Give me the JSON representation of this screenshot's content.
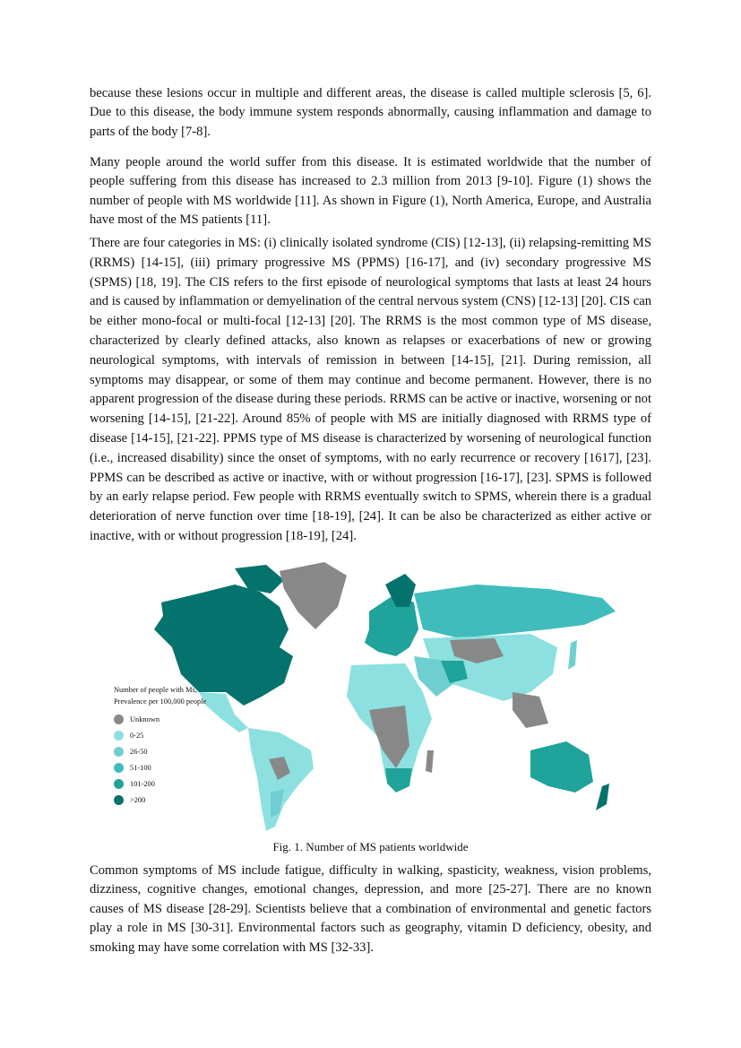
{
  "paragraphs": [
    "because these lesions occur in multiple and different areas, the disease is called multiple sclerosis [5, 6]. Due to this disease, the body immune system responds abnormally, causing inflammation and damage to parts of the body [7-8].",
    "Many people around the world suffer from this disease. It is estimated worldwide that the number of people suffering from this disease has increased to 2.3 million from 2013 [9-10]. Figure (1) shows the number of people with MS worldwide [11]. As shown in Figure (1), North America, Europe, and Australia have most of the MS patients [11].",
    "There are four categories in MS: (i) clinically isolated syndrome (CIS) [12-13], (ii) relapsing-remitting MS (RRMS) [14-15], (iii) primary progressive MS (PPMS) [16-17], and (iv) secondary progressive MS (SPMS) [18, 19]. The CIS refers to the first episode of neurological symptoms that lasts at least 24 hours and is caused by inflammation or demyelination of the central nervous system (CNS) [12-13] [20]. CIS can be either mono-focal or multi-focal [12-13] [20]. The RRMS is the most common type of MS disease, characterized by clearly defined attacks, also known as relapses or exacerbations of new or growing neurological symptoms, with intervals of remission in between [14-15], [21]. During remission, all symptoms may disappear, or some of them may continue and become permanent. However, there is no apparent progression of the disease during these periods. RRMS can be active or inactive, worsening or not worsening [14-15], [21-22]. Around 85% of people with MS are initially diagnosed with RRMS type of disease [14-15], [21-22]. PPMS type of MS disease is characterized by worsening of neurological function (i.e., increased disability) since the onset of symptoms, with no early recurrence or recovery [1617], [23]. PPMS can be described as active or inactive, with or without progression [16-17], [23]. SPMS is followed by an early relapse period. Few people with RRMS eventually switch to SPMS, wherein there is a gradual deterioration of nerve function over time [18-19], [24]. It can be also be characterized as either active or inactive, with or without progression [18-19], [24].",
    "Common symptoms of MS include fatigue, difficulty in walking, spasticity, weakness, vision problems, dizziness, cognitive changes, emotional changes, depression, and more [25-27]. There are no known causes of MS disease [28-29]. Scientists believe that a combination of environmental and genetic factors play a role in MS [30-31]. Environmental factors such as geography, vitamin D deficiency, obesity, and smoking may have some correlation with MS [32-33]."
  ],
  "figure": {
    "caption": "Fig. 1. Number of MS patients worldwide",
    "legend_title_1": "Number of people with Ms,",
    "legend_title_2": "Prevalence per 100,000 people",
    "legend": [
      {
        "label": "Unknown",
        "color": "#888888"
      },
      {
        "label": "0-25",
        "color": "#8de0e0"
      },
      {
        "label": "26-50",
        "color": "#6fcfd0"
      },
      {
        "label": "51-100",
        "color": "#40bcbc"
      },
      {
        "label": "101-200",
        "color": "#1fa39b"
      },
      {
        "label": ">200",
        "color": "#05736d"
      }
    ]
  }
}
